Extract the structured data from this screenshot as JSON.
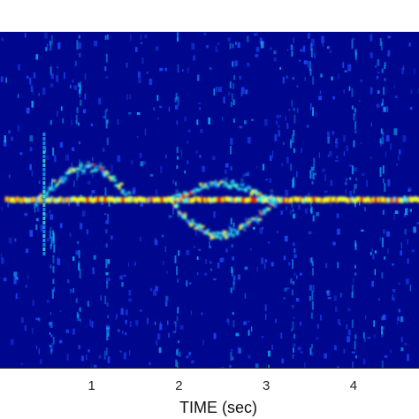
{
  "chart_data": {
    "type": "heatmap",
    "title": "",
    "xlabel": "TIME (sec)",
    "ylabel": "",
    "x_ticks": [
      1,
      2,
      3,
      4
    ],
    "x_tick_labels": [
      "1",
      "2",
      "3",
      "4"
    ],
    "xlim": [
      -0.05,
      4.75
    ],
    "colormap": "jet",
    "grid": false,
    "legend": "none",
    "features": [
      {
        "name": "carrier",
        "kind": "constant",
        "t_start": 0.0,
        "t_end": 4.75
      },
      {
        "name": "upper-branch",
        "kind": "arc",
        "t_start": 0.35,
        "t_end": 1.45,
        "peak_t": 0.95
      },
      {
        "name": "lower-branch",
        "kind": "arc",
        "t_start": 1.9,
        "t_end": 3.1,
        "peak_t": 2.45
      },
      {
        "name": "mid-lobe",
        "kind": "arc",
        "t_start": 1.9,
        "t_end": 3.1,
        "peak_t": 2.45
      },
      {
        "name": "impulse",
        "kind": "vertical",
        "t": 0.45
      }
    ]
  },
  "colors": {
    "background": "#00078f",
    "noise": "#1d4cff",
    "speckle": "#12b8ff",
    "signal_mid": "#47ffd8",
    "signal_high": "#f4ff2a",
    "signal_peak": "#e52a12"
  }
}
